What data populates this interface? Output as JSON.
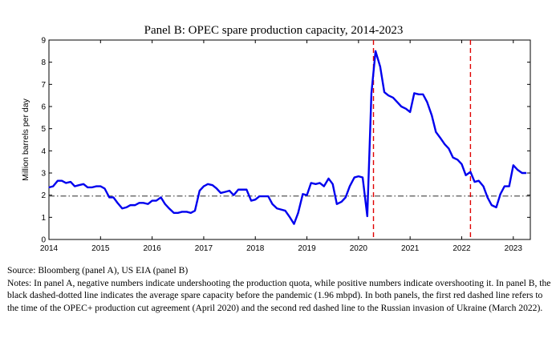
{
  "chart_data": {
    "type": "line",
    "title": "Panel B: OPEC spare production capacity, 2014-2023",
    "ylabel": "Million barrels per day",
    "xlabel": "",
    "xlim": [
      2014.0,
      2023.33
    ],
    "ylim": [
      0,
      9
    ],
    "x_ticks": [
      2014,
      2015,
      2016,
      2017,
      2018,
      2019,
      2020,
      2021,
      2022,
      2023
    ],
    "y_ticks": [
      0,
      1,
      2,
      3,
      4,
      5,
      6,
      7,
      8,
      9
    ],
    "grid": false,
    "colors": {
      "series": "#0000ee",
      "average": "#555555",
      "events": "#e00000"
    },
    "series": [
      {
        "x": [
          2014.0,
          2014.08,
          2014.17,
          2014.25,
          2014.33,
          2014.42,
          2014.5,
          2014.58,
          2014.67,
          2014.75,
          2014.83,
          2014.92,
          2015.0,
          2015.08,
          2015.17,
          2015.25,
          2015.33,
          2015.42,
          2015.5,
          2015.58,
          2015.67,
          2015.75,
          2015.83,
          2015.92,
          2016.0,
          2016.08,
          2016.17,
          2016.25,
          2016.33,
          2016.42,
          2016.5,
          2016.58,
          2016.67,
          2016.75,
          2016.83,
          2016.92,
          2017.0,
          2017.08,
          2017.17,
          2017.25,
          2017.33,
          2017.42,
          2017.5,
          2017.58,
          2017.67,
          2017.75,
          2017.83,
          2017.92,
          2018.0,
          2018.08,
          2018.17,
          2018.25,
          2018.33,
          2018.42,
          2018.5,
          2018.58,
          2018.67,
          2018.75,
          2018.83,
          2018.92,
          2019.0,
          2019.08,
          2019.17,
          2019.25,
          2019.33,
          2019.42,
          2019.5,
          2019.58,
          2019.67,
          2019.75,
          2019.83,
          2019.92,
          2020.0,
          2020.08,
          2020.17,
          2020.25,
          2020.33,
          2020.42,
          2020.5,
          2020.58,
          2020.67,
          2020.75,
          2020.83,
          2020.92,
          2021.0,
          2021.08,
          2021.17,
          2021.25,
          2021.33,
          2021.42,
          2021.5,
          2021.58,
          2021.67,
          2021.75,
          2021.83,
          2021.92,
          2022.0,
          2022.08,
          2022.17,
          2022.25,
          2022.33,
          2022.42,
          2022.5,
          2022.58,
          2022.67,
          2022.75,
          2022.83,
          2022.92,
          2023.0,
          2023.08,
          2023.17,
          2023.25
        ],
        "values": [
          2.35,
          2.4,
          2.65,
          2.65,
          2.55,
          2.6,
          2.4,
          2.45,
          2.5,
          2.35,
          2.35,
          2.4,
          2.4,
          2.3,
          1.9,
          1.9,
          1.65,
          1.4,
          1.45,
          1.55,
          1.55,
          1.65,
          1.65,
          1.6,
          1.75,
          1.75,
          1.9,
          1.6,
          1.4,
          1.2,
          1.2,
          1.25,
          1.25,
          1.2,
          1.3,
          2.2,
          2.4,
          2.5,
          2.45,
          2.3,
          2.1,
          2.15,
          2.2,
          2.0,
          2.25,
          2.25,
          2.25,
          1.75,
          1.8,
          1.95,
          1.95,
          1.95,
          1.6,
          1.4,
          1.35,
          1.3,
          1.0,
          0.7,
          1.2,
          2.05,
          2.0,
          2.55,
          2.5,
          2.55,
          2.4,
          2.75,
          2.5,
          1.6,
          1.7,
          1.9,
          2.4,
          2.8,
          2.85,
          2.8,
          1.05,
          6.6,
          8.5,
          7.8,
          6.65,
          6.5,
          6.4,
          6.2,
          6.0,
          5.9,
          5.75,
          6.6,
          6.55,
          6.55,
          6.2,
          5.6,
          4.85,
          4.6,
          4.3,
          4.1,
          3.7,
          3.6,
          3.4,
          2.9,
          3.05,
          2.6,
          2.65,
          2.4,
          1.9,
          1.55,
          1.45,
          2.05,
          2.4,
          2.4,
          3.35,
          3.15,
          3.0,
          3.0
        ]
      }
    ],
    "reference_lines": {
      "average_precovid": 1.96,
      "event_dates": [
        2020.29,
        2022.17
      ]
    }
  },
  "notes": {
    "source": "Source: Bloomberg (panel A), US EIA (panel B)",
    "text": "Notes: In panel A, negative numbers indicate undershooting the production quota, while positive numbers indicate overshooting it. In panel B, the black dashed-dotted line indicates the average spare capacity before the pandemic (1.96 mbpd). In both panels, the first red dashed line refers to the time of the OPEC+ production cut agreement (April 2020) and the second red dashed line to the Russian invasion of Ukraine (March 2022)."
  }
}
